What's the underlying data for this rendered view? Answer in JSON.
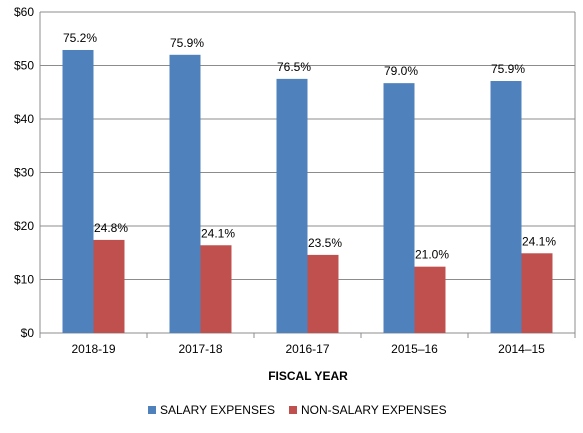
{
  "chart_data": {
    "type": "bar",
    "categories": [
      "2018-19",
      "2017-18",
      "2016-17",
      "2015–16",
      "2014–15"
    ],
    "series": [
      {
        "name": "SALARY EXPENSES",
        "color": "#4F81BD",
        "values": [
          52.9,
          52.0,
          47.5,
          46.7,
          47.1
        ],
        "data_labels": [
          "75.2%",
          "75.9%",
          "76.5%",
          "79.0%",
          "75.9%"
        ]
      },
      {
        "name": "NON-SALARY EXPENSES",
        "color": "#C0504D",
        "values": [
          17.4,
          16.4,
          14.6,
          12.4,
          14.9
        ],
        "data_labels": [
          "24.8%",
          "24.1%",
          "23.5%",
          "21.0%",
          "24.1%"
        ]
      }
    ],
    "xlabel": "FISCAL YEAR",
    "ylabel": "",
    "ylim": [
      0,
      60
    ],
    "yticks": [
      0,
      10,
      20,
      30,
      40,
      50,
      60
    ],
    "ytick_labels": [
      "$0",
      "$10",
      "$20",
      "$30",
      "$40",
      "$50",
      "$60"
    ],
    "grid": true,
    "legend_position": "bottom"
  }
}
